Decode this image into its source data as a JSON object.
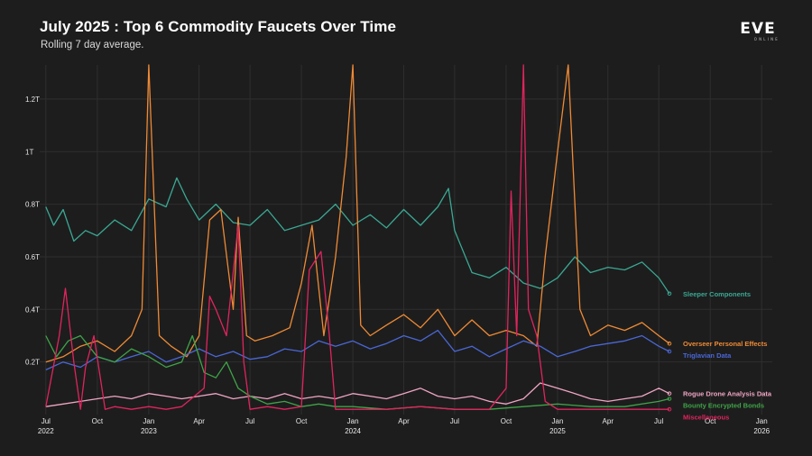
{
  "header": {
    "title": "July 2025 : Top 6 Commodity Faucets Over Time",
    "subtitle": "Rolling 7 day average.",
    "logo_text": "EVE",
    "logo_sub": "ONLINE"
  },
  "chart_data": {
    "type": "line",
    "title": "July 2025 : Top 6 Commodity Faucets Over Time",
    "subtitle": "Rolling 7 day average.",
    "x_range": [
      "2022-06-20",
      "2026-01-20"
    ],
    "ylim": [
      0,
      1.33
    ],
    "y_unit": "trillion",
    "y_ticks": [
      {
        "value": 0.2,
        "label": "0.2T"
      },
      {
        "value": 0.4,
        "label": "0.4T"
      },
      {
        "value": 0.6,
        "label": "0.6T"
      },
      {
        "value": 0.8,
        "label": "0.8T"
      },
      {
        "value": 1.0,
        "label": "1T"
      },
      {
        "value": 1.2,
        "label": "1.2T"
      }
    ],
    "x_ticks": [
      {
        "date": "2022-07-01",
        "month": "Jul",
        "year": "2022"
      },
      {
        "date": "2022-10-01",
        "month": "Oct",
        "year": ""
      },
      {
        "date": "2023-01-01",
        "month": "Jan",
        "year": "2023"
      },
      {
        "date": "2023-04-01",
        "month": "Apr",
        "year": ""
      },
      {
        "date": "2023-07-01",
        "month": "Jul",
        "year": ""
      },
      {
        "date": "2023-10-01",
        "month": "Oct",
        "year": ""
      },
      {
        "date": "2024-01-01",
        "month": "Jan",
        "year": "2024"
      },
      {
        "date": "2024-04-01",
        "month": "Apr",
        "year": ""
      },
      {
        "date": "2024-07-01",
        "month": "Jul",
        "year": ""
      },
      {
        "date": "2024-10-01",
        "month": "Oct",
        "year": ""
      },
      {
        "date": "2025-01-01",
        "month": "Jan",
        "year": "2025"
      },
      {
        "date": "2025-04-01",
        "month": "Apr",
        "year": ""
      },
      {
        "date": "2025-07-01",
        "month": "Jul",
        "year": ""
      },
      {
        "date": "2025-10-01",
        "month": "Oct",
        "year": ""
      },
      {
        "date": "2026-01-01",
        "month": "Jan",
        "year": "2026"
      }
    ],
    "grid": true,
    "legend": "end-of-line labels, right",
    "series": [
      {
        "name": "Sleeper Components",
        "color": "#3aa893",
        "x": [
          "2022-07-01",
          "2022-07-15",
          "2022-08-01",
          "2022-08-20",
          "2022-09-10",
          "2022-10-01",
          "2022-11-01",
          "2022-12-01",
          "2023-01-01",
          "2023-02-01",
          "2023-02-20",
          "2023-03-10",
          "2023-04-01",
          "2023-05-01",
          "2023-06-01",
          "2023-07-01",
          "2023-08-01",
          "2023-09-01",
          "2023-10-01",
          "2023-11-01",
          "2023-12-01",
          "2024-01-01",
          "2024-02-01",
          "2024-03-01",
          "2024-04-01",
          "2024-05-01",
          "2024-06-01",
          "2024-06-20",
          "2024-07-01",
          "2024-08-01",
          "2024-09-01",
          "2024-10-01",
          "2024-11-01",
          "2024-12-01",
          "2025-01-01",
          "2025-02-01",
          "2025-03-01",
          "2025-04-01",
          "2025-05-01",
          "2025-06-01",
          "2025-07-01",
          "2025-07-20"
        ],
        "y": [
          0.79,
          0.72,
          0.78,
          0.66,
          0.7,
          0.68,
          0.74,
          0.7,
          0.82,
          0.79,
          0.9,
          0.82,
          0.74,
          0.8,
          0.73,
          0.72,
          0.78,
          0.7,
          0.72,
          0.74,
          0.8,
          0.72,
          0.76,
          0.71,
          0.78,
          0.72,
          0.79,
          0.86,
          0.7,
          0.54,
          0.52,
          0.56,
          0.5,
          0.48,
          0.52,
          0.6,
          0.54,
          0.56,
          0.55,
          0.58,
          0.52,
          0.46
        ]
      },
      {
        "name": "Overseer Personal Effects",
        "color": "#ee8a35",
        "x": [
          "2022-07-01",
          "2022-08-01",
          "2022-09-01",
          "2022-10-01",
          "2022-11-01",
          "2022-12-01",
          "2022-12-20",
          "2023-01-01",
          "2023-01-20",
          "2023-02-10",
          "2023-03-10",
          "2023-04-01",
          "2023-04-20",
          "2023-05-10",
          "2023-06-01",
          "2023-06-10",
          "2023-06-25",
          "2023-07-10",
          "2023-08-10",
          "2023-09-10",
          "2023-10-01",
          "2023-10-20",
          "2023-11-10",
          "2023-12-01",
          "2023-12-20",
          "2024-01-01",
          "2024-01-15",
          "2024-02-01",
          "2024-03-01",
          "2024-04-01",
          "2024-05-01",
          "2024-06-01",
          "2024-07-01",
          "2024-08-01",
          "2024-09-01",
          "2024-10-01",
          "2024-11-01",
          "2024-11-25",
          "2024-12-10",
          "2025-01-01",
          "2025-01-20",
          "2025-02-10",
          "2025-03-01",
          "2025-04-01",
          "2025-05-01",
          "2025-06-01",
          "2025-07-01",
          "2025-07-20"
        ],
        "y": [
          0.2,
          0.22,
          0.26,
          0.28,
          0.24,
          0.3,
          0.4,
          1.33,
          0.3,
          0.26,
          0.22,
          0.3,
          0.74,
          0.78,
          0.4,
          0.75,
          0.3,
          0.28,
          0.3,
          0.33,
          0.5,
          0.72,
          0.3,
          0.6,
          0.98,
          1.33,
          0.34,
          0.3,
          0.34,
          0.38,
          0.33,
          0.4,
          0.3,
          0.36,
          0.3,
          0.32,
          0.3,
          0.26,
          0.6,
          1.0,
          1.33,
          0.4,
          0.3,
          0.34,
          0.32,
          0.35,
          0.3,
          0.27
        ]
      },
      {
        "name": "Triglavian Data",
        "color": "#4a67d6",
        "x": [
          "2022-07-01",
          "2022-08-01",
          "2022-09-01",
          "2022-10-01",
          "2022-11-01",
          "2022-12-01",
          "2023-01-01",
          "2023-02-01",
          "2023-03-01",
          "2023-04-01",
          "2023-05-01",
          "2023-06-01",
          "2023-07-01",
          "2023-08-01",
          "2023-09-01",
          "2023-10-01",
          "2023-11-01",
          "2023-12-01",
          "2024-01-01",
          "2024-02-01",
          "2024-03-01",
          "2024-04-01",
          "2024-05-01",
          "2024-06-01",
          "2024-07-01",
          "2024-08-01",
          "2024-09-01",
          "2024-10-01",
          "2024-11-01",
          "2024-12-01",
          "2025-01-01",
          "2025-02-01",
          "2025-03-01",
          "2025-04-01",
          "2025-05-01",
          "2025-06-01",
          "2025-07-01",
          "2025-07-20"
        ],
        "y": [
          0.17,
          0.2,
          0.18,
          0.22,
          0.2,
          0.22,
          0.24,
          0.2,
          0.22,
          0.25,
          0.22,
          0.24,
          0.21,
          0.22,
          0.25,
          0.24,
          0.28,
          0.26,
          0.28,
          0.25,
          0.27,
          0.3,
          0.28,
          0.32,
          0.24,
          0.26,
          0.22,
          0.25,
          0.28,
          0.26,
          0.22,
          0.24,
          0.26,
          0.27,
          0.28,
          0.3,
          0.26,
          0.24
        ]
      },
      {
        "name": "Rogue Drone Analysis Data",
        "color": "#f0a5c4",
        "x": [
          "2022-07-01",
          "2022-08-01",
          "2022-09-01",
          "2022-10-01",
          "2022-11-01",
          "2022-12-01",
          "2023-01-01",
          "2023-02-01",
          "2023-03-01",
          "2023-04-01",
          "2023-05-01",
          "2023-06-01",
          "2023-07-01",
          "2023-08-01",
          "2023-09-01",
          "2023-10-01",
          "2023-11-01",
          "2023-12-01",
          "2024-01-01",
          "2024-02-01",
          "2024-03-01",
          "2024-04-01",
          "2024-05-01",
          "2024-06-01",
          "2024-07-01",
          "2024-08-01",
          "2024-09-01",
          "2024-10-01",
          "2024-11-01",
          "2024-12-01",
          "2025-01-01",
          "2025-02-01",
          "2025-03-01",
          "2025-04-01",
          "2025-05-01",
          "2025-06-01",
          "2025-07-01",
          "2025-07-20"
        ],
        "y": [
          0.03,
          0.04,
          0.05,
          0.06,
          0.07,
          0.06,
          0.08,
          0.07,
          0.06,
          0.07,
          0.08,
          0.06,
          0.07,
          0.06,
          0.08,
          0.06,
          0.07,
          0.06,
          0.08,
          0.07,
          0.06,
          0.08,
          0.1,
          0.07,
          0.06,
          0.07,
          0.05,
          0.04,
          0.06,
          0.12,
          0.1,
          0.08,
          0.06,
          0.05,
          0.06,
          0.07,
          0.1,
          0.08
        ]
      },
      {
        "name": "Bounty Encrypted Bonds",
        "color": "#3fa348",
        "x": [
          "2022-07-01",
          "2022-07-20",
          "2022-08-10",
          "2022-09-01",
          "2022-10-01",
          "2022-11-01",
          "2022-12-01",
          "2023-01-01",
          "2023-02-01",
          "2023-03-01",
          "2023-03-20",
          "2023-04-10",
          "2023-05-01",
          "2023-05-20",
          "2023-06-10",
          "2023-07-01",
          "2023-08-01",
          "2023-09-01",
          "2023-10-01",
          "2023-11-01",
          "2023-12-01",
          "2024-01-01",
          "2024-03-01",
          "2024-05-01",
          "2024-07-01",
          "2024-09-01",
          "2024-11-01",
          "2025-01-01",
          "2025-03-01",
          "2025-05-01",
          "2025-07-01",
          "2025-07-20"
        ],
        "y": [
          0.3,
          0.22,
          0.28,
          0.3,
          0.22,
          0.2,
          0.25,
          0.22,
          0.18,
          0.2,
          0.3,
          0.16,
          0.14,
          0.2,
          0.1,
          0.07,
          0.04,
          0.05,
          0.03,
          0.04,
          0.03,
          0.03,
          0.02,
          0.03,
          0.02,
          0.02,
          0.03,
          0.04,
          0.03,
          0.03,
          0.05,
          0.06
        ]
      },
      {
        "name": "Miscellaneous",
        "color": "#e0245e",
        "x": [
          "2022-07-01",
          "2022-07-25",
          "2022-08-05",
          "2022-08-20",
          "2022-09-01",
          "2022-09-10",
          "2022-09-25",
          "2022-10-15",
          "2022-11-01",
          "2022-12-01",
          "2023-01-01",
          "2023-02-01",
          "2023-03-01",
          "2023-04-10",
          "2023-04-20",
          "2023-05-01",
          "2023-05-20",
          "2023-06-10",
          "2023-06-20",
          "2023-07-01",
          "2023-08-01",
          "2023-09-01",
          "2023-10-01",
          "2023-10-15",
          "2023-11-05",
          "2023-11-20",
          "2023-12-01",
          "2024-01-01",
          "2024-03-01",
          "2024-05-01",
          "2024-07-01",
          "2024-09-01",
          "2024-10-01",
          "2024-10-10",
          "2024-10-20",
          "2024-11-01",
          "2024-11-10",
          "2024-11-25",
          "2024-12-10",
          "2025-01-01",
          "2025-03-01",
          "2025-05-01",
          "2025-07-01",
          "2025-07-20"
        ],
        "y": [
          0.03,
          0.3,
          0.48,
          0.2,
          0.02,
          0.18,
          0.3,
          0.02,
          0.03,
          0.02,
          0.03,
          0.02,
          0.03,
          0.1,
          0.45,
          0.4,
          0.3,
          0.72,
          0.2,
          0.02,
          0.03,
          0.02,
          0.03,
          0.55,
          0.62,
          0.3,
          0.02,
          0.02,
          0.02,
          0.03,
          0.02,
          0.02,
          0.1,
          0.85,
          0.3,
          1.33,
          0.4,
          0.3,
          0.05,
          0.02,
          0.02,
          0.02,
          0.02,
          0.02
        ]
      }
    ]
  }
}
